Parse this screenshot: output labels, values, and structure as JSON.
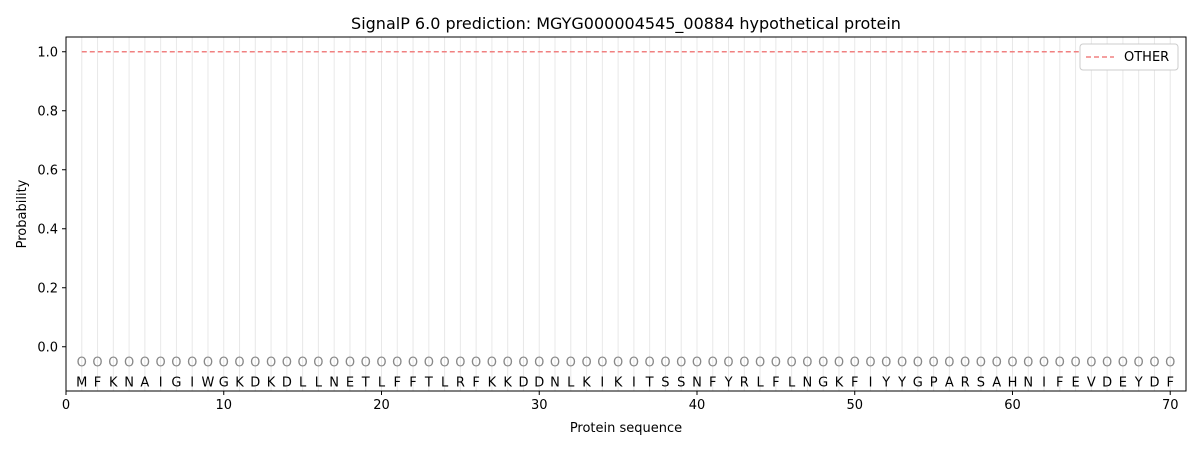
{
  "chart_data": {
    "type": "line",
    "title": "SignalP 6.0 prediction: MGYG000004545_00884 hypothetical protein",
    "xlabel": "Protein sequence",
    "ylabel": "Probability",
    "xlim": [
      0,
      71
    ],
    "ylim": [
      -0.15,
      1.05
    ],
    "xticks": [
      0,
      10,
      20,
      30,
      40,
      50,
      60,
      70
    ],
    "yticks": [
      "0.0",
      "0.2",
      "0.4",
      "0.6",
      "0.8",
      "1.0"
    ],
    "sequence": "MFKNAIGIWGKDKDLLNETLFFTLRFKKDDNLKIKITSSNFYRLFLNGKFIYYGPARSAHNIFEVDEYDF",
    "predicted_label": "O",
    "series": [
      {
        "name": "OTHER",
        "color": "#f08080",
        "style": "dashed",
        "x_range": [
          1,
          70
        ],
        "value": 1.0
      }
    ],
    "legend": "top-right",
    "grid": "vertical lines at each residue"
  }
}
